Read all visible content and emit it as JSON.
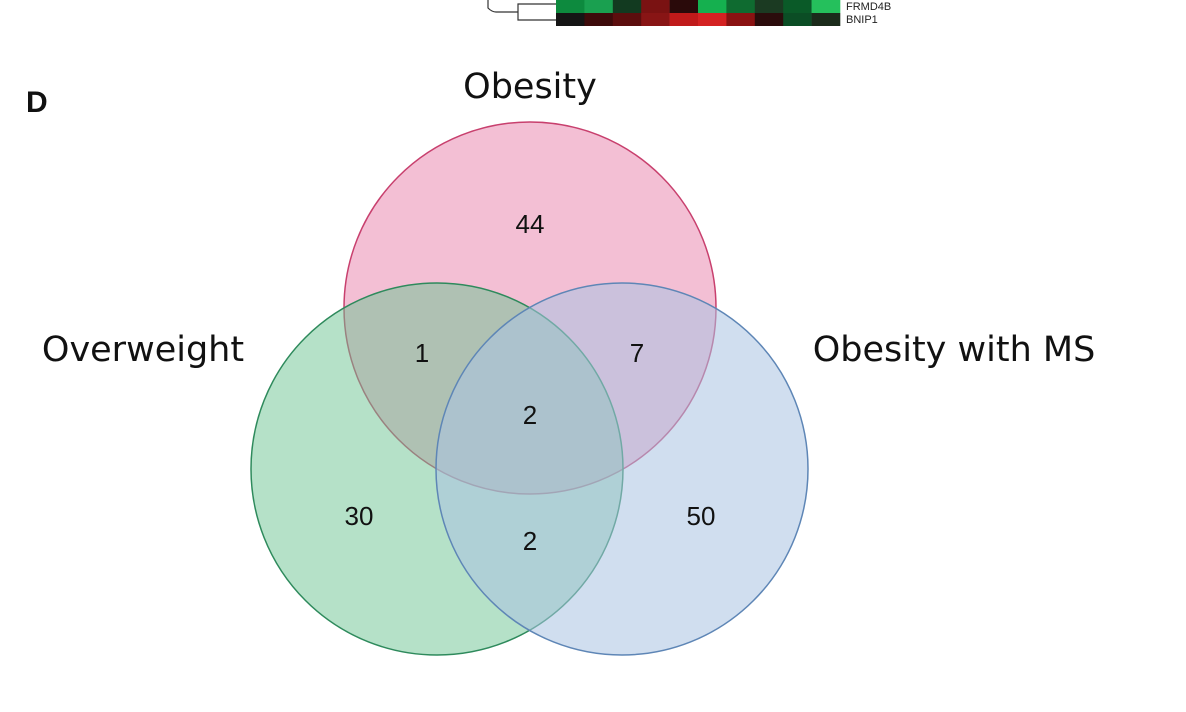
{
  "heatmap_fragment": {
    "gene_labels": [
      "FRMD4B",
      "BNIP1"
    ],
    "cell_colors": [
      "#0d8a3e",
      "#1aa050",
      "#123a20",
      "#7a1212",
      "#2a0a0a",
      "#15b04f",
      "#0f6b30",
      "#1b3a22",
      "#0a5a28",
      "#25c05c",
      "#151515",
      "#3d0b0b",
      "#5c0e0e",
      "#881515",
      "#c01a1a",
      "#d42222",
      "#8a1212",
      "#2b0c0c",
      "#0b4d25",
      "#1b2b1b"
    ]
  },
  "diagram": {
    "panel_letter": "D",
    "sets": [
      {
        "label": "Obesity",
        "fill": "#ea8bb0",
        "stroke": "#c8406e"
      },
      {
        "label": "Overweight",
        "fill": "#6cc492",
        "stroke": "#2e8a5c"
      },
      {
        "label": "Obesity with MS",
        "fill": "#a9c2e2",
        "stroke": "#5e86b6"
      }
    ],
    "regions": {
      "obesity_only": "44",
      "overweight_only": "30",
      "ms_only": "50",
      "obesity_overweight": "1",
      "obesity_ms": "7",
      "overweight_ms": "2",
      "all_three": "2"
    }
  }
}
